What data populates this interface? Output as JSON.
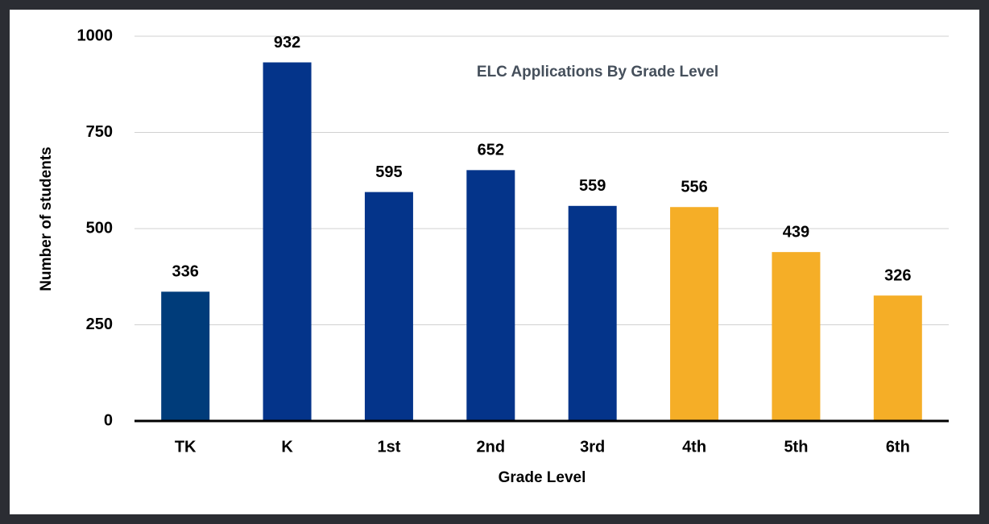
{
  "chart_data": {
    "type": "bar",
    "title": "ELC Applications By Grade Level",
    "x_label": "Grade Level",
    "y_label": "Number of students",
    "categories": [
      "TK",
      "K",
      "1st",
      "2nd",
      "3rd",
      "4th",
      "5th",
      "6th"
    ],
    "values": [
      336,
      932,
      595,
      652,
      559,
      556,
      439,
      326
    ],
    "colors": [
      "#003c7a",
      "#04348a",
      "#04348a",
      "#04348a",
      "#04348a",
      "#f5ae27",
      "#f5ae27",
      "#f5ae27"
    ],
    "ylim": [
      0,
      1000
    ],
    "yticks": [
      0,
      250,
      500,
      750,
      1000
    ],
    "grid": true
  }
}
